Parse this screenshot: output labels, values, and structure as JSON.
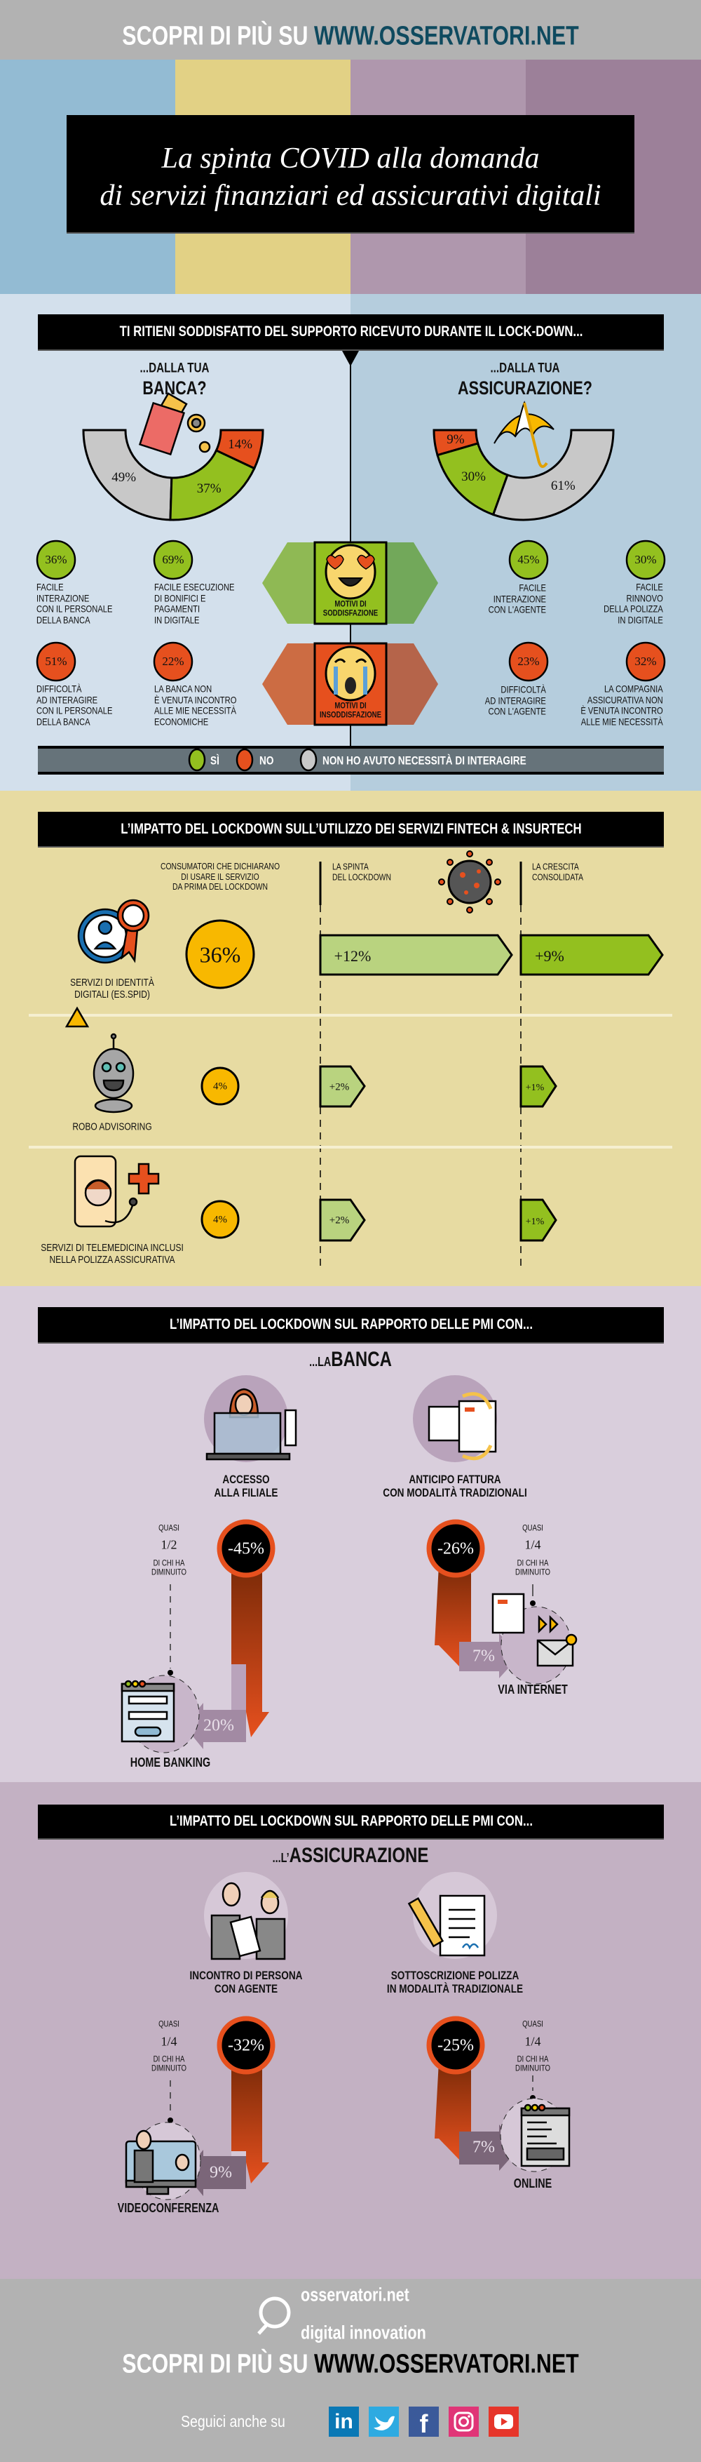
{
  "header": {
    "prefix": "SCOPRI DI PIÙ SU",
    "url": "WWW.OSSERVATORI.NET"
  },
  "title": {
    "line1": "La spinta COVID alla domanda",
    "line2": "di servizi finanziari ed assicurativi digitali"
  },
  "colors": {
    "si": "#93c01f",
    "no": "#e6501e",
    "nr": "#c8c8c8",
    "brand_url": "#0f4a5f"
  },
  "satisfaction": {
    "question": "TI RITIENI SODDISFATTO DEL SUPPORTO RICEVUTO DURANTE IL LOCK-DOWN...",
    "bank": {
      "pre": "...DALLA TUA",
      "title": "BANCA?",
      "icon": "money-icon",
      "segments": [
        {
          "cat": "nr",
          "value": 49,
          "label": "49%"
        },
        {
          "cat": "si",
          "value": 37,
          "label": "37%"
        },
        {
          "cat": "no",
          "value": 14,
          "label": "14%"
        }
      ],
      "positive": [
        {
          "value": "36%",
          "text": "FACILE\nINTERAZIONE\nCON IL PERSONALE\nDELLA BANCA"
        },
        {
          "value": "69%",
          "text": "FACILE ESECUZIONE\nDI BONIFICI E\nPAGAMENTI\nIN DIGITALE"
        }
      ],
      "negative": [
        {
          "value": "51%",
          "text": "DIFFICOLTÀ\nAD INTERAGIRE\nCON IL PERSONALE\nDELLA BANCA"
        },
        {
          "value": "22%",
          "text": "LA BANCA NON\nÈ VENUTA INCONTRO\nALLE MIE NECESSITÀ\nECONOMICHE"
        }
      ]
    },
    "insurance": {
      "pre": "...DALLA TUA",
      "title": "ASSICURAZIONE?",
      "icon": "umbrella-icon",
      "segments": [
        {
          "cat": "no",
          "value": 9,
          "label": "9%"
        },
        {
          "cat": "si",
          "value": 30,
          "label": "30%"
        },
        {
          "cat": "nr",
          "value": 61,
          "label": "61%"
        }
      ],
      "positive": [
        {
          "value": "45%",
          "text": "FACILE\nINTERAZIONE\nCON L'AGENTE"
        },
        {
          "value": "30%",
          "text": "FACILE\nRINNOVO\nDELLA POLIZZA\nIN DIGITALE"
        }
      ],
      "negative": [
        {
          "value": "23%",
          "text": "DIFFICOLTÀ\nAD INTERAGIRE\nCON L'AGENTE"
        },
        {
          "value": "32%",
          "text": "LA  COMPAGNIA\nASSICURATIVA NON\nÈ VENUTA INCONTRO\nALLE MIE NECESSITÀ"
        }
      ]
    },
    "motivi_pos": "MOTIVI DI\nSODDISFAZIONE",
    "motivi_neg": "MOTIVI DI\nINSODDISFAZIONE",
    "legend": [
      {
        "cat": "si",
        "label": "SÌ"
      },
      {
        "cat": "no",
        "label": "NO"
      },
      {
        "cat": "nr",
        "label": "NON HO AVUTO NECESSITÀ DI INTERAGIRE"
      }
    ]
  },
  "fintech": {
    "title": "L’IMPATTO DEL LOCKDOWN SULL’UTILIZZO DEI SERVIZI FINTECH & INSURTECH",
    "col_before": "CONSUMATORI CHE DICHIARANO\nDI USARE IL SERVIZIO\nDA PRIMA DEL LOCKDOWN",
    "col_push": "LA SPINTA\nDEL LOCKDOWN",
    "col_growth": "LA CRESCITA\nCONSOLIDATA",
    "rows": [
      {
        "name": "SERVIZI DI IDENTITÀ\nDIGITALI (ES.SPID)",
        "before": "36%",
        "push": "+12%",
        "growth": "+9%"
      },
      {
        "name": "ROBO ADVISORING",
        "before": "4%",
        "push": "+2%",
        "growth": "+1%"
      },
      {
        "name": "SERVIZI DI TELEMEDICINA INCLUSI\nNELLA POLIZZA ASSICURATIVA",
        "before": "4%",
        "push": "+2%",
        "growth": "+1%"
      }
    ]
  },
  "pmi_bank": {
    "title": "L’IMPATTO DEL LOCKDOWN SUL RAPPORTO DELLE PMI CON...",
    "subtitle_pre": "...LA",
    "subtitle": "BANCA",
    "items": [
      {
        "label": "ACCESSO\nALLA FILIALE",
        "change": "-45%",
        "quasi": "QUASI",
        "frac": "1/2",
        "note": "DI CHI HA\nDIMINUITO",
        "channel": "HOME BANKING",
        "channel_share": "20%"
      },
      {
        "label": "ANTICIPO FATTURA\nCON MODALITÀ TRADIZIONALI",
        "change": "-26%",
        "quasi": "QUASI",
        "frac": "1/4",
        "note": "DI CHI HA\nDIMINUITO",
        "channel": "VIA INTERNET",
        "channel_share": "7%"
      }
    ]
  },
  "pmi_ins": {
    "title": "L’IMPATTO DEL LOCKDOWN SUL RAPPORTO DELLE PMI CON...",
    "subtitle_pre": "...L’",
    "subtitle": "ASSICURAZIONE",
    "items": [
      {
        "label": "INCONTRO DI PERSONA\nCON AGENTE",
        "change": "-32%",
        "quasi": "QUASI",
        "frac": "1/4",
        "note": "DI CHI HA\nDIMINUITO",
        "channel": "VIDEOCONFERENZA",
        "channel_share": "9%"
      },
      {
        "label": "SOTTOSCRIZIONE POLIZZA\nIN MODALITÀ TRADIZIONALE",
        "change": "-25%",
        "quasi": "QUASI",
        "frac": "1/4",
        "note": "DI CHI HA\nDIMINUITO",
        "channel": "ONLINE",
        "channel_share": "7%"
      }
    ]
  },
  "footer": {
    "logo_line1": "osservatori.net",
    "logo_line2": "digital innovation",
    "prefix": "SCOPRI DI PIÙ SU",
    "url": "WWW.OSSERVATORI.NET",
    "follow": "Seguici anche su",
    "social": [
      {
        "name": "linkedin",
        "glyph": "in",
        "color": "#0a78b5"
      },
      {
        "name": "twitter",
        "glyph": "",
        "color": "#2eaae1"
      },
      {
        "name": "facebook",
        "glyph": "f",
        "color": "#3b5a9a"
      },
      {
        "name": "instagram",
        "glyph": "",
        "color": "#e03577"
      },
      {
        "name": "youtube",
        "glyph": "",
        "color": "#e6352a"
      }
    ]
  }
}
